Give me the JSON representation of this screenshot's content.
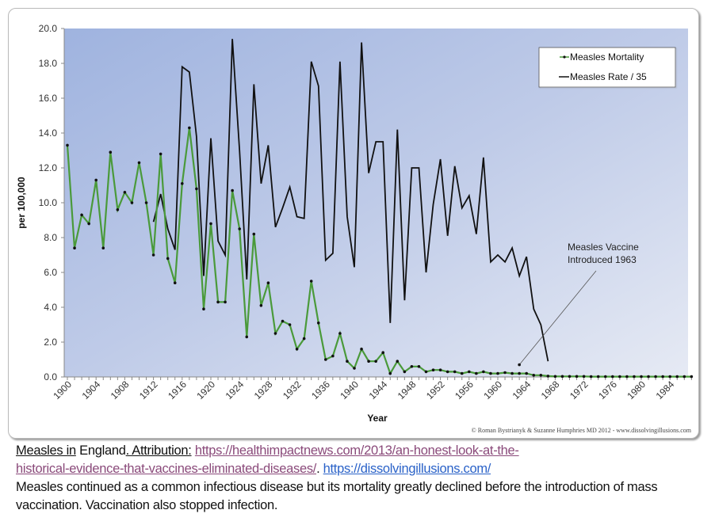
{
  "chart_data": {
    "type": "line",
    "title": "",
    "xlabel": "Year",
    "ylabel": "per 100,000",
    "ylim": [
      0,
      20
    ],
    "xlim": [
      1900,
      1987
    ],
    "y_ticks": [
      "0.0",
      "2.0",
      "4.0",
      "6.0",
      "8.0",
      "10.0",
      "12.0",
      "14.0",
      "16.0",
      "18.0",
      "20.0"
    ],
    "x_tick_labels": [
      "1900",
      "1904",
      "1908",
      "1912",
      "1916",
      "1920",
      "1924",
      "1928",
      "1932",
      "1936",
      "1940",
      "1944",
      "1948",
      "1952",
      "1956",
      "1960",
      "1964",
      "1968",
      "1972",
      "1976",
      "1980",
      "1984"
    ],
    "grid": false,
    "legend_position": "top-right",
    "series": [
      {
        "name": "Measles Mortality",
        "color": "#4a9a3a",
        "marker": "dot",
        "x": [
          1900,
          1901,
          1902,
          1903,
          1904,
          1905,
          1906,
          1907,
          1908,
          1909,
          1910,
          1911,
          1912,
          1913,
          1914,
          1915,
          1916,
          1917,
          1918,
          1919,
          1920,
          1921,
          1922,
          1923,
          1924,
          1925,
          1926,
          1927,
          1928,
          1929,
          1930,
          1931,
          1932,
          1933,
          1934,
          1935,
          1936,
          1937,
          1938,
          1939,
          1940,
          1941,
          1942,
          1943,
          1944,
          1945,
          1946,
          1947,
          1948,
          1949,
          1950,
          1951,
          1952,
          1953,
          1954,
          1955,
          1956,
          1957,
          1958,
          1959,
          1960,
          1961,
          1962,
          1963,
          1964,
          1965,
          1966,
          1967,
          1968,
          1969,
          1970,
          1971,
          1972,
          1973,
          1974,
          1975,
          1976,
          1977,
          1978,
          1979,
          1980,
          1981,
          1982,
          1983,
          1984,
          1985,
          1986,
          1987
        ],
        "values": [
          13.3,
          7.4,
          9.3,
          8.8,
          11.3,
          7.4,
          12.9,
          9.6,
          10.6,
          10.0,
          12.3,
          10.0,
          7.0,
          12.8,
          6.8,
          5.4,
          11.1,
          14.3,
          10.8,
          3.9,
          8.8,
          4.3,
          4.3,
          10.7,
          8.5,
          2.3,
          8.2,
          4.1,
          5.4,
          2.5,
          3.2,
          3.0,
          1.6,
          2.2,
          5.5,
          3.1,
          1.0,
          1.2,
          2.5,
          0.9,
          0.5,
          1.6,
          0.9,
          0.9,
          1.4,
          0.2,
          0.9,
          0.3,
          0.6,
          0.6,
          0.3,
          0.4,
          0.4,
          0.3,
          0.3,
          0.2,
          0.3,
          0.2,
          0.3,
          0.2,
          0.2,
          0.25,
          0.2,
          0.2,
          0.2,
          0.1,
          0.1,
          0.05,
          0.03,
          0.03,
          0.03,
          0.03,
          0.03,
          0.02,
          0.02,
          0.02,
          0.02,
          0.02,
          0.02,
          0.02,
          0.02,
          0.02,
          0.02,
          0.02,
          0.02,
          0.02,
          0.02,
          0.02
        ]
      },
      {
        "name": "Measles Rate / 35",
        "color": "#111111",
        "marker": "none",
        "x": [
          1912,
          1913,
          1914,
          1915,
          1916,
          1917,
          1918,
          1919,
          1920,
          1921,
          1922,
          1923,
          1924,
          1925,
          1926,
          1927,
          1928,
          1929,
          1930,
          1931,
          1932,
          1933,
          1934,
          1935,
          1936,
          1937,
          1938,
          1939,
          1940,
          1941,
          1942,
          1943,
          1944,
          1945,
          1946,
          1947,
          1948,
          1949,
          1950,
          1951,
          1952,
          1953,
          1954,
          1955,
          1956,
          1957,
          1958,
          1959,
          1960,
          1961,
          1962,
          1963,
          1964,
          1965,
          1966,
          1967
        ],
        "values": [
          8.9,
          10.5,
          8.5,
          7.3,
          17.8,
          17.5,
          13.8,
          5.8,
          13.7,
          7.8,
          7.0,
          19.4,
          13.0,
          5.6,
          16.8,
          11.1,
          13.3,
          8.6,
          9.7,
          10.9,
          9.2,
          9.1,
          18.1,
          16.7,
          6.7,
          7.1,
          18.1,
          9.2,
          6.3,
          19.2,
          11.7,
          13.5,
          13.5,
          3.1,
          14.2,
          4.4,
          12.0,
          12.0,
          6.0,
          9.9,
          12.5,
          8.1,
          12.1,
          9.7,
          10.4,
          8.2,
          12.6,
          6.6,
          7.0,
          6.6,
          7.4,
          5.8,
          6.9,
          3.9,
          3.0,
          0.9
        ]
      }
    ],
    "annotations": [
      {
        "text_lines": [
          "Measles Vaccine",
          "Introduced 1963"
        ],
        "points_to": {
          "x": 1963,
          "y": 0.7
        }
      }
    ],
    "copyright": "© Roman Bystrianyk & Suzanne Humphries MD 2012 - www.dissolvingillusions.com"
  },
  "caption": {
    "part1": "Measles in",
    "part2": " England",
    "part3": ". Attribution:",
    "link1": "https://healthimpactnews.com/2013/an-honest-look-at-the-historical-evidence-that-vaccines-eliminated-diseases/",
    "link1_line1": "https://healthimpactnews.com/2013/an-honest-look-at-the-",
    "link1_line2": "historical-evidence-that-vaccines-eliminated-diseases/",
    "sep": ". ",
    "link2": "https://dissolvingillusions.com/",
    "body": "Measles continued as a common infectious disease but its mortality greatly declined before the introduction of mass vaccination. Vaccination also stopped infection."
  }
}
